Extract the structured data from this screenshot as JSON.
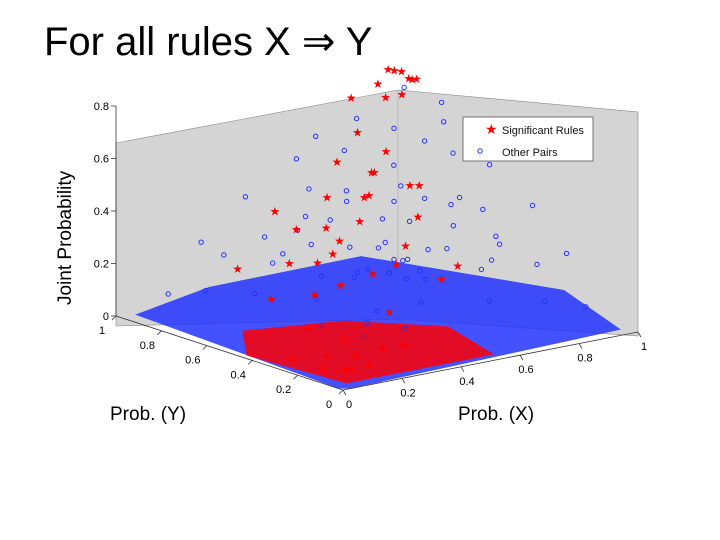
{
  "slide": {
    "title": "For all rules X ⇒ Y"
  },
  "chart_data": {
    "type": "scatter",
    "projection": "3d",
    "zlabel": "Joint Probability",
    "ylabel": "Prob. (Y)",
    "xlabel": "Prob. (X)",
    "xlim": [
      0,
      1
    ],
    "ylim": [
      0,
      1
    ],
    "zlim": [
      0,
      0.8
    ],
    "x_ticks": [
      "0",
      "0.2",
      "0.4",
      "0.6",
      "0.8",
      "1"
    ],
    "y_ticks": [
      "0",
      "0.2",
      "0.4",
      "0.6",
      "0.8",
      "1"
    ],
    "z_ticks": [
      "0",
      "0.2",
      "0.4",
      "0.6",
      "0.8"
    ],
    "legend_position": "top-right",
    "colors": {
      "significant": "#ff0000",
      "other": "#2233ff",
      "panel": "#d4d4d4"
    },
    "series": [
      {
        "name": "Significant Rules",
        "marker": "star",
        "color": "#ff0000",
        "points": [
          [
            0.82,
            0.84,
            0.8
          ],
          [
            0.85,
            0.8,
            0.77
          ],
          [
            0.78,
            0.86,
            0.75
          ],
          [
            0.86,
            0.86,
            0.78
          ],
          [
            0.8,
            0.78,
            0.73
          ],
          [
            0.88,
            0.82,
            0.76
          ],
          [
            0.76,
            0.8,
            0.72
          ],
          [
            0.83,
            0.88,
            0.79
          ],
          [
            0.9,
            0.88,
            0.74
          ],
          [
            0.72,
            0.9,
            0.7
          ],
          [
            0.7,
            0.72,
            0.55
          ],
          [
            0.62,
            0.68,
            0.5
          ],
          [
            0.55,
            0.6,
            0.45
          ],
          [
            0.65,
            0.55,
            0.48
          ],
          [
            0.5,
            0.72,
            0.42
          ],
          [
            0.68,
            0.82,
            0.6
          ],
          [
            0.58,
            0.78,
            0.52
          ],
          [
            0.48,
            0.55,
            0.38
          ],
          [
            0.42,
            0.62,
            0.35
          ],
          [
            0.6,
            0.45,
            0.4
          ],
          [
            0.35,
            0.5,
            0.3
          ],
          [
            0.38,
            0.7,
            0.33
          ],
          [
            0.28,
            0.6,
            0.25
          ],
          [
            0.52,
            0.4,
            0.32
          ],
          [
            0.45,
            0.35,
            0.28
          ],
          [
            0.3,
            0.4,
            0.22
          ],
          [
            0.72,
            0.6,
            0.45
          ],
          [
            0.4,
            0.82,
            0.36
          ],
          [
            0.22,
            0.75,
            0.2
          ],
          [
            0.25,
            0.45,
            0.18
          ],
          [
            0.18,
            0.55,
            0.15
          ],
          [
            0.55,
            0.28,
            0.22
          ],
          [
            0.62,
            0.3,
            0.25
          ],
          [
            0.35,
            0.25,
            0.15
          ],
          [
            0.15,
            0.35,
            0.1
          ],
          [
            0.2,
            0.25,
            0.08
          ],
          [
            0.1,
            0.2,
            0.05
          ],
          [
            0.08,
            0.1,
            0.03
          ],
          [
            0.12,
            0.12,
            0.02
          ],
          [
            0.05,
            0.15,
            0.03
          ],
          [
            0.15,
            0.08,
            0.04
          ],
          [
            0.25,
            0.15,
            0.06
          ],
          [
            0.3,
            0.12,
            0.07
          ],
          [
            0.18,
            0.18,
            0.04
          ],
          [
            0.06,
            0.3,
            0.02
          ],
          [
            0.45,
            0.6,
            0.3
          ],
          [
            0.58,
            0.66,
            0.42
          ],
          [
            0.66,
            0.72,
            0.48
          ],
          [
            0.44,
            0.44,
            0.22
          ],
          [
            0.36,
            0.58,
            0.24
          ]
        ]
      },
      {
        "name": "Other Pairs",
        "marker": "circle",
        "color": "#2233ff",
        "points": [
          [
            0.75,
            0.75,
            0.62
          ],
          [
            0.7,
            0.85,
            0.64
          ],
          [
            0.88,
            0.7,
            0.63
          ],
          [
            0.68,
            0.66,
            0.52
          ],
          [
            0.8,
            0.68,
            0.58
          ],
          [
            0.62,
            0.8,
            0.55
          ],
          [
            0.9,
            0.9,
            0.7
          ],
          [
            0.95,
            0.8,
            0.66
          ],
          [
            0.6,
            0.9,
            0.58
          ],
          [
            0.85,
            0.62,
            0.54
          ],
          [
            0.55,
            0.7,
            0.44
          ],
          [
            0.7,
            0.55,
            0.42
          ],
          [
            0.5,
            0.8,
            0.43
          ],
          [
            0.78,
            0.5,
            0.42
          ],
          [
            0.65,
            0.62,
            0.4
          ],
          [
            0.58,
            0.58,
            0.36
          ],
          [
            0.48,
            0.68,
            0.35
          ],
          [
            0.72,
            0.45,
            0.34
          ],
          [
            0.45,
            0.75,
            0.35
          ],
          [
            0.82,
            0.45,
            0.38
          ],
          [
            0.4,
            0.66,
            0.28
          ],
          [
            0.66,
            0.4,
            0.28
          ],
          [
            0.52,
            0.52,
            0.28
          ],
          [
            0.92,
            0.55,
            0.5
          ],
          [
            0.55,
            0.92,
            0.5
          ],
          [
            0.35,
            0.8,
            0.28
          ],
          [
            0.8,
            0.35,
            0.28
          ],
          [
            0.42,
            0.48,
            0.22
          ],
          [
            0.48,
            0.42,
            0.22
          ],
          [
            0.3,
            0.7,
            0.22
          ],
          [
            0.7,
            0.3,
            0.22
          ],
          [
            0.95,
            0.4,
            0.38
          ],
          [
            0.4,
            0.95,
            0.38
          ],
          [
            0.35,
            0.55,
            0.2
          ],
          [
            0.55,
            0.35,
            0.2
          ],
          [
            0.25,
            0.85,
            0.22
          ],
          [
            0.85,
            0.25,
            0.22
          ],
          [
            0.28,
            0.48,
            0.15
          ],
          [
            0.48,
            0.28,
            0.15
          ],
          [
            0.2,
            0.65,
            0.14
          ],
          [
            0.65,
            0.2,
            0.14
          ],
          [
            0.95,
            0.25,
            0.24
          ],
          [
            0.25,
            0.95,
            0.24
          ],
          [
            0.15,
            0.8,
            0.12
          ],
          [
            0.8,
            0.15,
            0.12
          ],
          [
            0.9,
            0.1,
            0.09
          ],
          [
            0.1,
            0.9,
            0.09
          ],
          [
            0.22,
            0.38,
            0.09
          ],
          [
            0.38,
            0.22,
            0.09
          ],
          [
            0.62,
            0.62,
            0.25
          ],
          [
            0.75,
            0.6,
            0.2
          ],
          [
            0.6,
            0.75,
            0.2
          ],
          [
            0.85,
            0.85,
            0.35
          ],
          [
            0.72,
            0.92,
            0.3
          ],
          [
            0.92,
            0.72,
            0.3
          ],
          [
            0.5,
            0.6,
            0.15
          ],
          [
            0.6,
            0.5,
            0.15
          ],
          [
            0.45,
            0.85,
            0.18
          ],
          [
            0.85,
            0.45,
            0.18
          ],
          [
            0.35,
            0.35,
            0.08
          ],
          [
            0.98,
            0.98,
            0.15
          ],
          [
            0.98,
            0.6,
            0.2
          ],
          [
            0.6,
            0.98,
            0.2
          ],
          [
            0.75,
            0.75,
            0.12
          ],
          [
            0.88,
            0.88,
            0.05
          ],
          [
            0.5,
            0.5,
            0.05
          ],
          [
            0.7,
            0.8,
            0.08
          ],
          [
            0.8,
            0.7,
            0.08
          ],
          [
            0.3,
            0.3,
            0.05
          ],
          [
            0.95,
            0.95,
            0.02
          ]
        ]
      }
    ]
  }
}
